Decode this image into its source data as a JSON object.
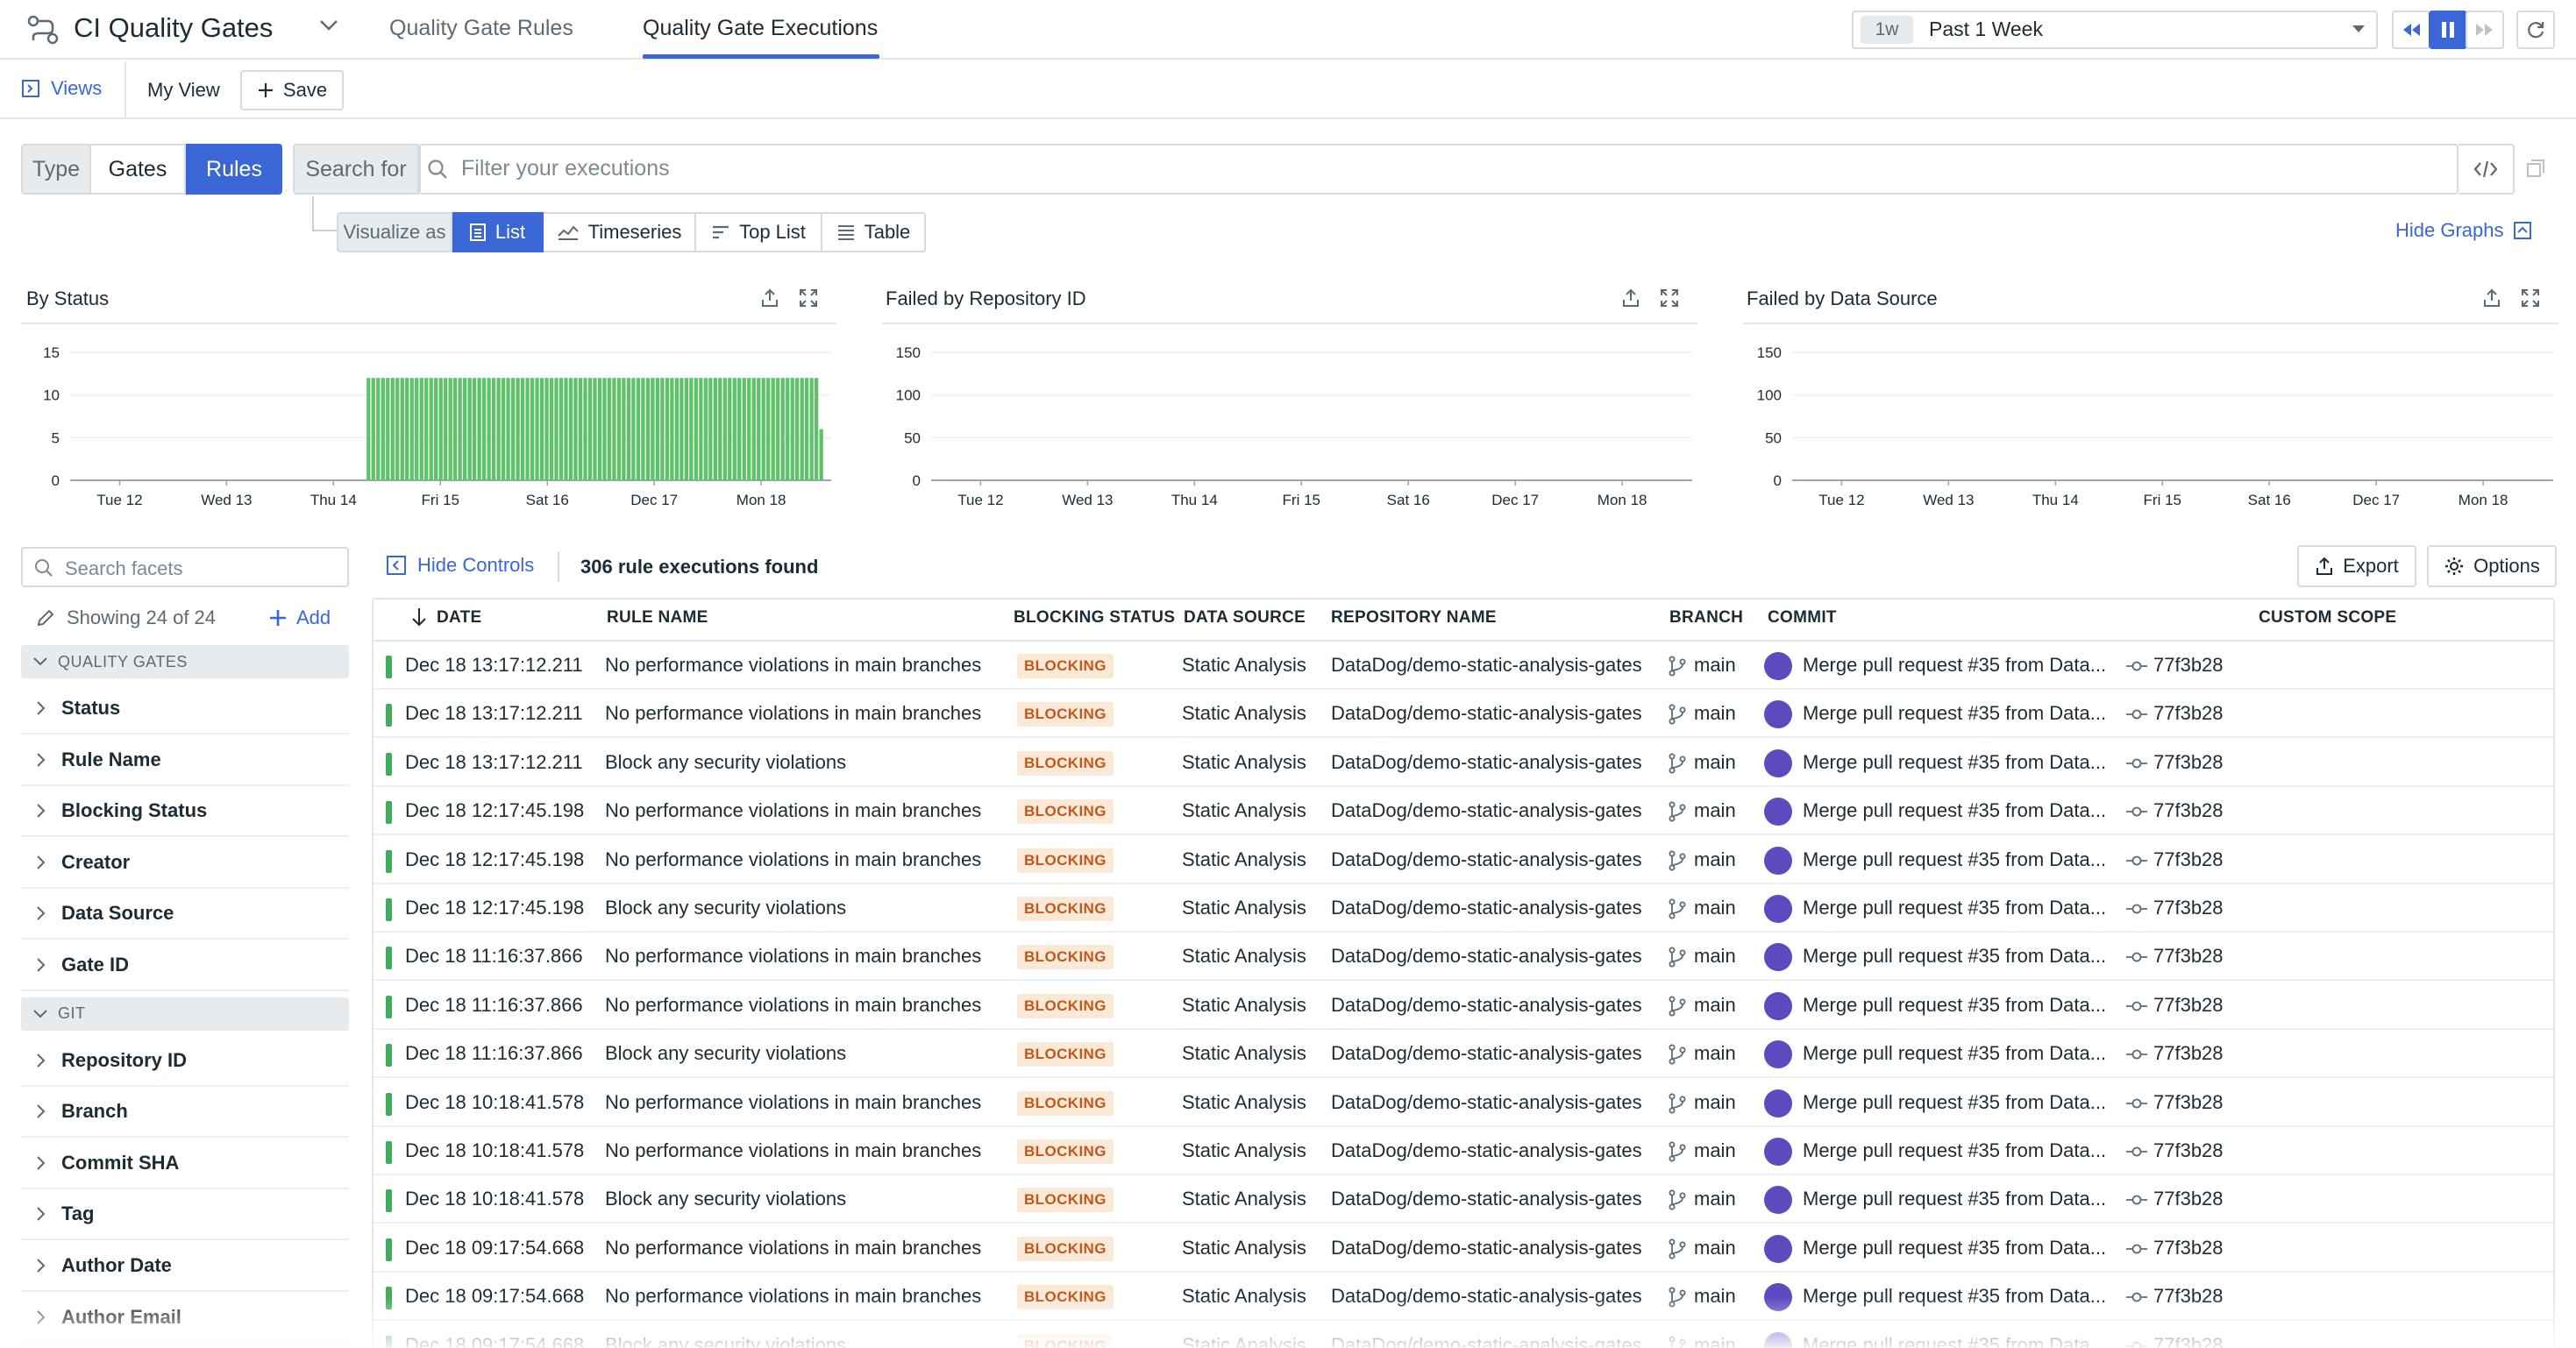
{
  "app": {
    "title": "CI Quality Gates"
  },
  "tabs": [
    {
      "label": "Quality Gate Rules",
      "active": false
    },
    {
      "label": "Quality Gate Executions",
      "active": true
    }
  ],
  "time": {
    "short": "1w",
    "label": "Past 1 Week"
  },
  "views": {
    "views_label": "Views",
    "current_view": "My View",
    "save_label": "Save"
  },
  "query": {
    "type_label": "Type",
    "type_options": [
      "Gates",
      "Rules"
    ],
    "type_selected": "Rules",
    "search_for_label": "Search for",
    "search_placeholder": "Filter your executions"
  },
  "visualize": {
    "label": "Visualize as",
    "options": [
      "List",
      "Timeseries",
      "Top List",
      "Table"
    ],
    "selected": "List",
    "hide_graphs_label": "Hide Graphs"
  },
  "chart_data": [
    {
      "type": "bar",
      "title": "By Status",
      "x_ticks": [
        "Tue 12",
        "Wed 13",
        "Thu 14",
        "Fri 15",
        "Sat 16",
        "Dec 17",
        "Mon 18"
      ],
      "y_ticks": [
        0,
        5,
        10,
        15
      ],
      "ylim": [
        0,
        15
      ],
      "series": [
        {
          "color": "#5ec269",
          "values": [
            12,
            12,
            12,
            12,
            12,
            12,
            12,
            12,
            12,
            12,
            12,
            12,
            12,
            12,
            12,
            12,
            12,
            12,
            12,
            12,
            12,
            12,
            12,
            12,
            12,
            12,
            12,
            12,
            12,
            12,
            12,
            12,
            12,
            12,
            12,
            12,
            12,
            12,
            12,
            12,
            12,
            12,
            12,
            12,
            12,
            12,
            12,
            12,
            12,
            12,
            12,
            12,
            12,
            12,
            12,
            12,
            12,
            12,
            12,
            12,
            12,
            12,
            12,
            12,
            12,
            12,
            12,
            12,
            12,
            12,
            12,
            12,
            12,
            12,
            12,
            12,
            12,
            12,
            12,
            12,
            12,
            12,
            12,
            12,
            12,
            12,
            12,
            12,
            12,
            12,
            12,
            12,
            12,
            12,
            6
          ]
        }
      ],
      "x_start": "Mon 11 ~12:00",
      "bars_start_index": 0
    },
    {
      "type": "bar",
      "title": "Failed by Repository ID",
      "x_ticks": [
        "Tue 12",
        "Wed 13",
        "Thu 14",
        "Fri 15",
        "Sat 16",
        "Dec 17",
        "Mon 18"
      ],
      "y_ticks": [
        0,
        50,
        100,
        150
      ],
      "ylim": [
        0,
        150
      ],
      "series": []
    },
    {
      "type": "bar",
      "title": "Failed by Data Source",
      "x_ticks": [
        "Tue 12",
        "Wed 13",
        "Thu 14",
        "Fri 15",
        "Sat 16",
        "Dec 17",
        "Mon 18"
      ],
      "y_ticks": [
        0,
        50,
        100,
        150
      ],
      "ylim": [
        0,
        150
      ],
      "series": []
    }
  ],
  "facets": {
    "search_placeholder": "Search facets",
    "showing_label": "Showing 24 of 24",
    "add_label": "Add",
    "groups": [
      {
        "name": "QUALITY GATES",
        "items": [
          "Status",
          "Rule Name",
          "Blocking Status",
          "Creator",
          "Data Source",
          "Gate ID"
        ]
      },
      {
        "name": "GIT",
        "items": [
          "Repository ID",
          "Branch",
          "Commit SHA",
          "Tag",
          "Author Date",
          "Author Email"
        ]
      }
    ]
  },
  "table": {
    "hide_controls_label": "Hide Controls",
    "count_label": "306 rule executions found",
    "export_label": "Export",
    "options_label": "Options",
    "columns": [
      "DATE",
      "RULE NAME",
      "BLOCKING STATUS",
      "DATA SOURCE",
      "REPOSITORY NAME",
      "BRANCH",
      "COMMIT",
      "CUSTOM SCOPE"
    ],
    "rows": [
      {
        "date": "Dec 18 13:17:12.211",
        "rule": "No performance violations in main branches",
        "blocking": "BLOCKING",
        "source": "Static Analysis",
        "repo": "DataDog/demo-static-analysis-gates",
        "branch": "main",
        "commit": "Merge pull request #35 from Data...",
        "sha": "77f3b28"
      },
      {
        "date": "Dec 18 13:17:12.211",
        "rule": "No performance violations in main branches",
        "blocking": "BLOCKING",
        "source": "Static Analysis",
        "repo": "DataDog/demo-static-analysis-gates",
        "branch": "main",
        "commit": "Merge pull request #35 from Data...",
        "sha": "77f3b28"
      },
      {
        "date": "Dec 18 13:17:12.211",
        "rule": "Block any security violations",
        "blocking": "BLOCKING",
        "source": "Static Analysis",
        "repo": "DataDog/demo-static-analysis-gates",
        "branch": "main",
        "commit": "Merge pull request #35 from Data...",
        "sha": "77f3b28"
      },
      {
        "date": "Dec 18 12:17:45.198",
        "rule": "No performance violations in main branches",
        "blocking": "BLOCKING",
        "source": "Static Analysis",
        "repo": "DataDog/demo-static-analysis-gates",
        "branch": "main",
        "commit": "Merge pull request #35 from Data...",
        "sha": "77f3b28"
      },
      {
        "date": "Dec 18 12:17:45.198",
        "rule": "No performance violations in main branches",
        "blocking": "BLOCKING",
        "source": "Static Analysis",
        "repo": "DataDog/demo-static-analysis-gates",
        "branch": "main",
        "commit": "Merge pull request #35 from Data...",
        "sha": "77f3b28"
      },
      {
        "date": "Dec 18 12:17:45.198",
        "rule": "Block any security violations",
        "blocking": "BLOCKING",
        "source": "Static Analysis",
        "repo": "DataDog/demo-static-analysis-gates",
        "branch": "main",
        "commit": "Merge pull request #35 from Data...",
        "sha": "77f3b28"
      },
      {
        "date": "Dec 18 11:16:37.866",
        "rule": "No performance violations in main branches",
        "blocking": "BLOCKING",
        "source": "Static Analysis",
        "repo": "DataDog/demo-static-analysis-gates",
        "branch": "main",
        "commit": "Merge pull request #35 from Data...",
        "sha": "77f3b28"
      },
      {
        "date": "Dec 18 11:16:37.866",
        "rule": "No performance violations in main branches",
        "blocking": "BLOCKING",
        "source": "Static Analysis",
        "repo": "DataDog/demo-static-analysis-gates",
        "branch": "main",
        "commit": "Merge pull request #35 from Data...",
        "sha": "77f3b28"
      },
      {
        "date": "Dec 18 11:16:37.866",
        "rule": "Block any security violations",
        "blocking": "BLOCKING",
        "source": "Static Analysis",
        "repo": "DataDog/demo-static-analysis-gates",
        "branch": "main",
        "commit": "Merge pull request #35 from Data...",
        "sha": "77f3b28"
      },
      {
        "date": "Dec 18 10:18:41.578",
        "rule": "No performance violations in main branches",
        "blocking": "BLOCKING",
        "source": "Static Analysis",
        "repo": "DataDog/demo-static-analysis-gates",
        "branch": "main",
        "commit": "Merge pull request #35 from Data...",
        "sha": "77f3b28"
      },
      {
        "date": "Dec 18 10:18:41.578",
        "rule": "No performance violations in main branches",
        "blocking": "BLOCKING",
        "source": "Static Analysis",
        "repo": "DataDog/demo-static-analysis-gates",
        "branch": "main",
        "commit": "Merge pull request #35 from Data...",
        "sha": "77f3b28"
      },
      {
        "date": "Dec 18 10:18:41.578",
        "rule": "Block any security violations",
        "blocking": "BLOCKING",
        "source": "Static Analysis",
        "repo": "DataDog/demo-static-analysis-gates",
        "branch": "main",
        "commit": "Merge pull request #35 from Data...",
        "sha": "77f3b28"
      },
      {
        "date": "Dec 18 09:17:54.668",
        "rule": "No performance violations in main branches",
        "blocking": "BLOCKING",
        "source": "Static Analysis",
        "repo": "DataDog/demo-static-analysis-gates",
        "branch": "main",
        "commit": "Merge pull request #35 from Data...",
        "sha": "77f3b28"
      },
      {
        "date": "Dec 18 09:17:54.668",
        "rule": "No performance violations in main branches",
        "blocking": "BLOCKING",
        "source": "Static Analysis",
        "repo": "DataDog/demo-static-analysis-gates",
        "branch": "main",
        "commit": "Merge pull request #35 from Data...",
        "sha": "77f3b28"
      },
      {
        "date": "Dec 18 09:17:54.668",
        "rule": "Block any security violations",
        "blocking": "BLOCKING",
        "source": "Static Analysis",
        "repo": "DataDog/demo-static-analysis-gates",
        "branch": "main",
        "commit": "Merge pull request #35 from Data...",
        "sha": "77f3b28"
      }
    ]
  },
  "colors": {
    "accent": "#3b66d6",
    "success": "#5ec269",
    "blocking_bg": "#fbe9d7",
    "blocking_text": "#c2571a"
  }
}
